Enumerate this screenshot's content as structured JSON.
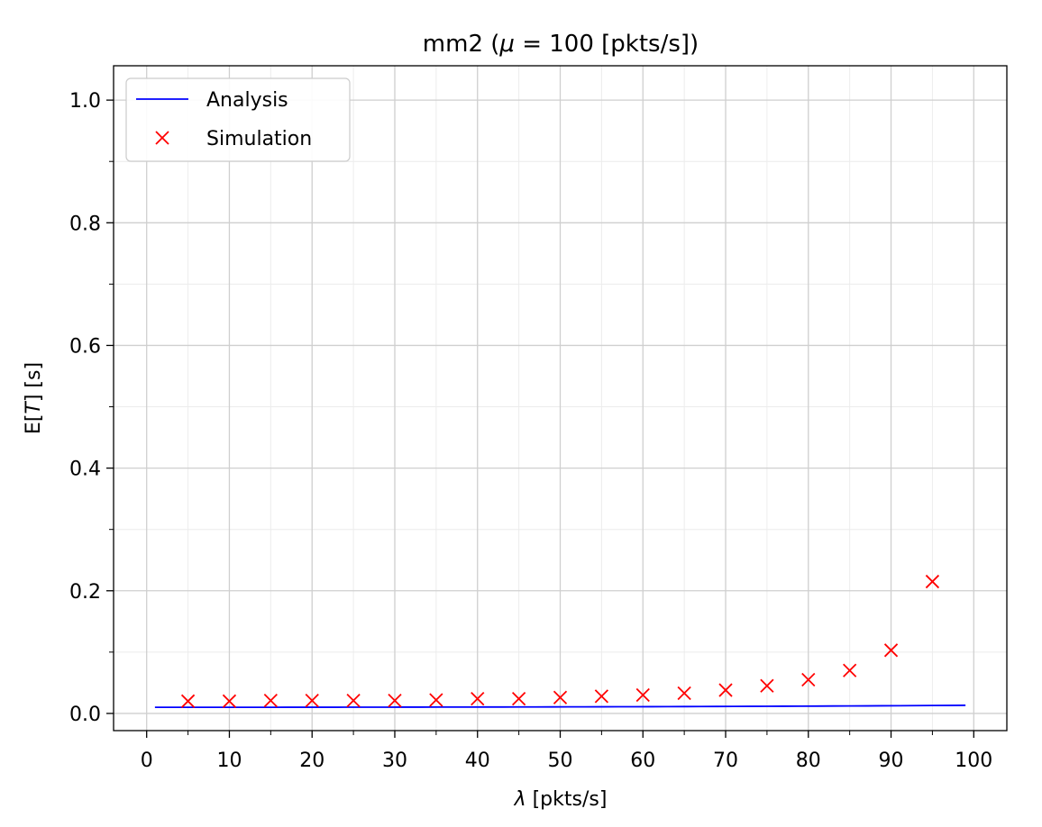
{
  "chart_data": {
    "type": "line",
    "title": {
      "prefix": "mm2 (",
      "symbol": "μ",
      "suffix": " = 100 [pkts/s])"
    },
    "xlabel": {
      "symbol": "λ",
      "suffix": " [pkts/s]"
    },
    "ylabel": {
      "prefix": "E[",
      "symbol": "T",
      "suffix": "] [s]"
    },
    "xlim": [
      -4,
      104
    ],
    "ylim": [
      -0.028,
      1.056
    ],
    "xticks": [
      0,
      10,
      20,
      30,
      40,
      50,
      60,
      70,
      80,
      90,
      100
    ],
    "xtick_labels": [
      "0",
      "10",
      "20",
      "30",
      "40",
      "50",
      "60",
      "70",
      "80",
      "90",
      "100"
    ],
    "x_minor_ticks": [
      5,
      15,
      25,
      35,
      45,
      55,
      65,
      75,
      85,
      95
    ],
    "yticks": [
      0.0,
      0.2,
      0.4,
      0.6,
      0.8,
      1.0
    ],
    "ytick_labels": [
      "0.0",
      "0.2",
      "0.4",
      "0.6",
      "0.8",
      "1.0"
    ],
    "y_minor_ticks": [
      0.1,
      0.3,
      0.5,
      0.7,
      0.9
    ],
    "grid": true,
    "legend": {
      "position": "upper-left",
      "entries": [
        "Analysis",
        "Simulation"
      ]
    },
    "series": [
      {
        "name": "Analysis",
        "style": "line",
        "color": "#0000ff",
        "mu": 100,
        "x_start": 1,
        "x_end": 99,
        "x_step": 2
      },
      {
        "name": "Simulation",
        "style": "x-marker",
        "color": "#ff0000",
        "x": [
          5,
          10,
          15,
          20,
          25,
          30,
          35,
          40,
          45,
          50,
          55,
          60,
          65,
          70,
          75,
          80,
          85,
          90,
          95
        ],
        "y": [
          0.02,
          0.02,
          0.021,
          0.021,
          0.021,
          0.021,
          0.022,
          0.024,
          0.024,
          0.026,
          0.028,
          0.03,
          0.033,
          0.038,
          0.045,
          0.055,
          0.07,
          0.103,
          0.215
        ]
      }
    ]
  }
}
